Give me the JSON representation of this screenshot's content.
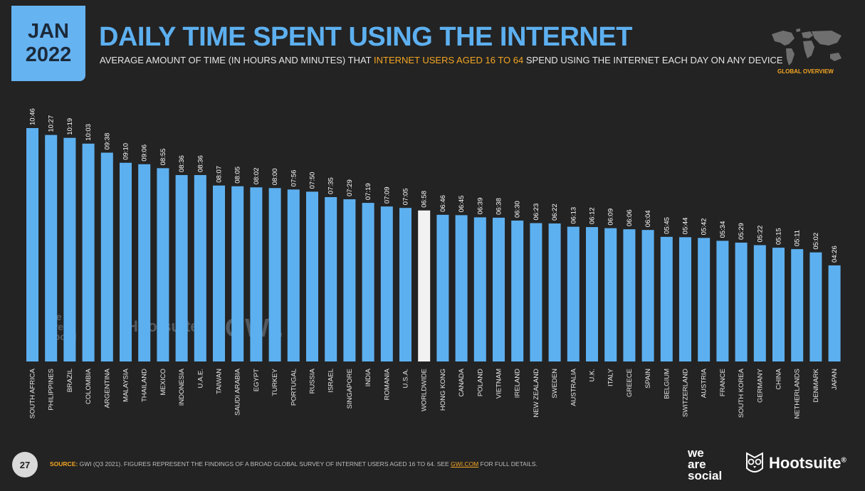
{
  "badge": {
    "month": "JAN",
    "year": "2022"
  },
  "title": "DAILY TIME SPENT USING THE INTERNET",
  "subtitle": {
    "part1": "AVERAGE AMOUNT OF TIME (IN HOURS AND MINUTES) THAT",
    "highlight": "INTERNET USERS AGED 16 TO 64",
    "part2": "SPEND USING THE INTERNET EACH DAY ON ANY DEVICE"
  },
  "region_label": "GLOBAL OVERVIEW",
  "map_icon": "world-map-icon",
  "page_number": "27",
  "source": {
    "label": "SOURCE:",
    "text": "GWI (Q3 2021). FIGURES REPRESENT THE FINDINGS OF A BROAD GLOBAL SURVEY OF INTERNET USERS AGED 16 TO 64. SEE",
    "link": "GWI.COM",
    "tail": "FOR FULL DETAILS."
  },
  "brands": {
    "we": "we",
    "are": "are",
    "social": "social",
    "hootsuite": "Hootsuite",
    "hootsuite_mark": "®",
    "gwi": "GWI."
  },
  "colors": {
    "bar": "#5db0f0",
    "highlight_bar": "#f2f2f2",
    "accent": "#f4a623",
    "background": "#232323"
  },
  "chart_data": {
    "type": "bar",
    "title": "DAILY TIME SPENT USING THE INTERNET",
    "xlabel": "",
    "ylabel": "",
    "highlight_category": "WORLDWIDE",
    "ylim": [
      0,
      11
    ],
    "categories": [
      "SOUTH AFRICA",
      "PHILIPPINES",
      "BRAZIL",
      "COLOMBIA",
      "ARGENTINA",
      "MALAYSIA",
      "THAILAND",
      "MEXICO",
      "INDONESIA",
      "U.A.E.",
      "TAIWAN",
      "SAUDI ARABIA",
      "EGYPT",
      "TURKEY",
      "PORTUGAL",
      "RUSSIA",
      "ISRAEL",
      "SINGAPORE",
      "INDIA",
      "ROMANIA",
      "U.S.A.",
      "WORLDWIDE",
      "HONG KONG",
      "CANADA",
      "POLAND",
      "VIETNAM",
      "IRELAND",
      "NEW ZEALAND",
      "SWEDEN",
      "AUSTRALIA",
      "U.K.",
      "ITALY",
      "GREECE",
      "SPAIN",
      "BELGIUM",
      "SWITZERLAND",
      "AUSTRIA",
      "FRANCE",
      "SOUTH KOREA",
      "GERMANY",
      "CHINA",
      "NETHERLANDS",
      "DENMARK",
      "JAPAN"
    ],
    "labels": [
      "10:46",
      "10:27",
      "10:19",
      "10:03",
      "09:38",
      "09:10",
      "09:06",
      "08:55",
      "08:36",
      "08:36",
      "08:07",
      "08:05",
      "08:02",
      "08:00",
      "07:56",
      "07:50",
      "07:35",
      "07:29",
      "07:19",
      "07:09",
      "07:05",
      "06:58",
      "06:46",
      "06:45",
      "06:39",
      "06:38",
      "06:30",
      "06:23",
      "06:22",
      "06:13",
      "06:12",
      "06:09",
      "06:06",
      "06:04",
      "05:45",
      "05:44",
      "05:42",
      "05:34",
      "05:29",
      "05:22",
      "05:15",
      "05:11",
      "05:02",
      "04:26"
    ]
  }
}
